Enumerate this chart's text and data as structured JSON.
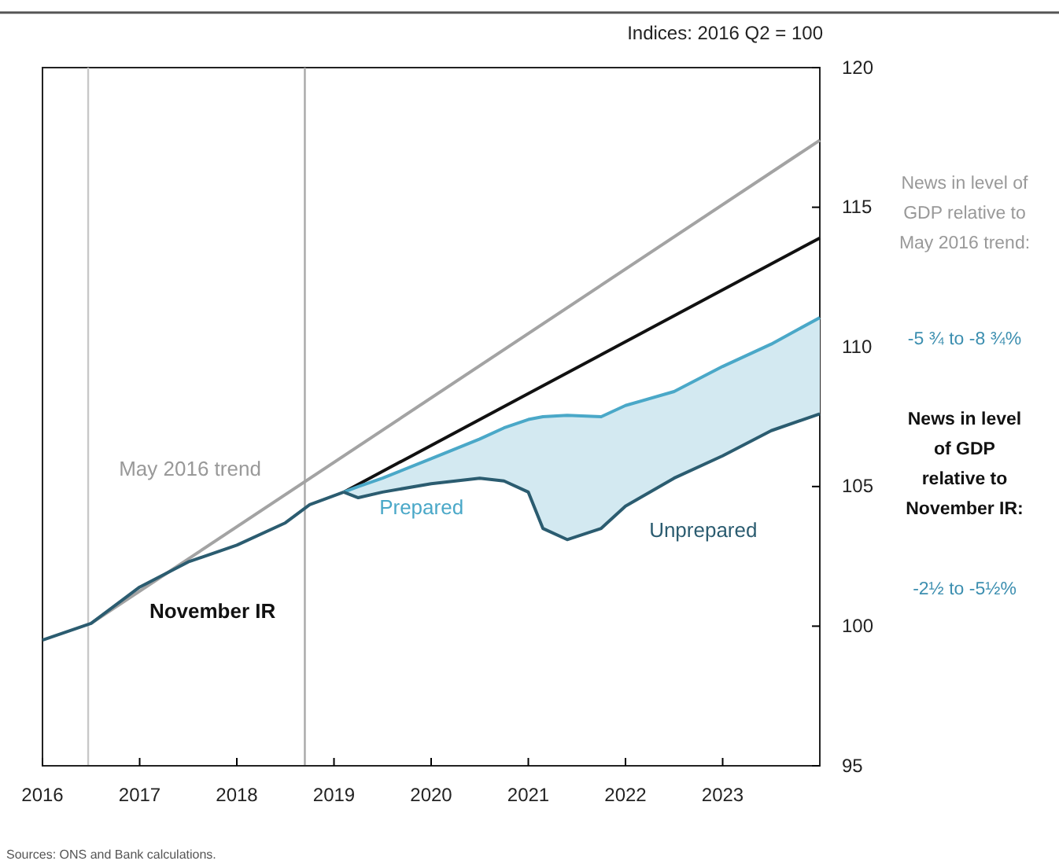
{
  "chart_data": {
    "type": "line",
    "ylabel": "Indices: 2016 Q2 = 100",
    "xlim": [
      2016,
      2024
    ],
    "xticks": [
      2016,
      2017,
      2018,
      2019,
      2020,
      2021,
      2022,
      2023
    ],
    "ylim": [
      95,
      120
    ],
    "yticks": [
      95,
      100,
      105,
      110,
      115,
      120
    ],
    "series": [
      {
        "name": "May 2016 trend",
        "color": "#a3a3a3",
        "x": [
          2016.5,
          2024
        ],
        "values": [
          100.1,
          117.4
        ]
      },
      {
        "color": "#2b5c70",
        "x": [
          2016,
          2016.5,
          2017,
          2017.5,
          2018,
          2018.5,
          2018.75,
          2019.1
        ],
        "values": [
          99.5,
          100.1,
          101.4,
          102.3,
          102.9,
          103.7,
          104.35,
          104.8
        ]
      },
      {
        "name": "November IR",
        "color": "#111111",
        "x": [
          2019.1,
          2024
        ],
        "values": [
          104.8,
          113.9
        ]
      },
      {
        "name": "Prepared",
        "color": "#4aa8c8",
        "x": [
          2019.1,
          2019.25,
          2019.5,
          2020,
          2020.5,
          2020.75,
          2021,
          2021.15,
          2021.4,
          2021.75,
          2022,
          2022.5,
          2023,
          2023.5,
          2024
        ],
        "values": [
          104.8,
          105.0,
          105.3,
          106.0,
          106.7,
          107.1,
          107.4,
          107.5,
          107.55,
          107.5,
          107.9,
          108.4,
          109.3,
          110.1,
          111.05
        ],
        "lower": [
          104.8,
          104.6,
          104.8,
          105.1,
          105.3,
          105.2,
          104.8,
          103.5,
          103.1,
          103.5,
          104.3,
          105.3,
          106.1,
          107.0,
          107.6
        ],
        "upper": [
          104.8,
          105.0,
          105.3,
          106.0,
          106.7,
          107.1,
          107.4,
          107.5,
          107.55,
          107.5,
          107.9,
          108.4,
          109.3,
          110.1,
          111.05
        ]
      },
      {
        "name": "Unprepared",
        "color": "#2b5c70",
        "x": [
          2019.1,
          2019.25,
          2019.5,
          2020,
          2020.5,
          2020.75,
          2021,
          2021.15,
          2021.4,
          2021.75,
          2022,
          2022.5,
          2023,
          2023.5,
          2024
        ],
        "values": [
          104.8,
          104.6,
          104.8,
          105.1,
          105.3,
          105.2,
          104.8,
          103.5,
          103.1,
          103.5,
          104.3,
          105.3,
          106.1,
          107.0,
          107.6
        ]
      }
    ],
    "ref_lines": [
      {
        "axis": "x",
        "value": 2016.47,
        "color": "#c8c8c8"
      },
      {
        "axis": "x",
        "value": 2018.7,
        "color": "#a8a8a8"
      }
    ],
    "annotations": [
      "News in level of GDP relative to May 2016 trend:",
      "-5 ¾ to -8 ¾%",
      "News in level of GDP relative to November IR:",
      "-2½ to -5½%",
      "Sources: ONS and Bank calculations."
    ],
    "grid": false,
    "marker": "none",
    "line_style": "solid"
  }
}
